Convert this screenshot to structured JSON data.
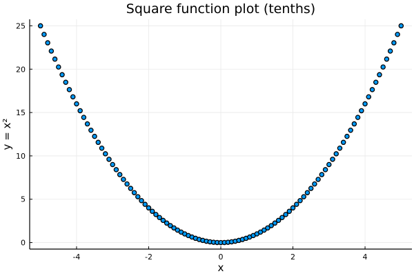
{
  "chart_data": {
    "type": "scatter",
    "title": "Square function plot (tenths)",
    "xlabel": "x",
    "ylabel": "y = x²",
    "xlim": [
      -5.3,
      5.3
    ],
    "ylim": [
      -0.75,
      25.75
    ],
    "xticks": [
      -4,
      -2,
      0,
      2,
      4
    ],
    "yticks": [
      0,
      5,
      10,
      15,
      20,
      25
    ],
    "grid": true,
    "legend": "none",
    "series": [
      {
        "marker_color": "#009AFA",
        "marker_edge_color": "#000000",
        "x_start": -5,
        "x_end": 5,
        "x_step": 0.1,
        "y_function": "x^2",
        "points": [
          [
            -5,
            25
          ],
          [
            -4.9,
            24.01
          ],
          [
            -4.8,
            23.04
          ],
          [
            -4.7,
            22.09
          ],
          [
            -4.6,
            21.16
          ],
          [
            -4.5,
            20.25
          ],
          [
            -4.4,
            19.36
          ],
          [
            -4.3,
            18.49
          ],
          [
            -4.2,
            17.64
          ],
          [
            -4.1,
            16.81
          ],
          [
            -4,
            16
          ],
          [
            -3.9,
            15.21
          ],
          [
            -3.8,
            14.44
          ],
          [
            -3.7,
            13.69
          ],
          [
            -3.6,
            12.96
          ],
          [
            -3.5,
            12.25
          ],
          [
            -3.4,
            11.56
          ],
          [
            -3.3,
            10.89
          ],
          [
            -3.2,
            10.24
          ],
          [
            -3.1,
            9.61
          ],
          [
            -3,
            9
          ],
          [
            -2.9,
            8.41
          ],
          [
            -2.8,
            7.84
          ],
          [
            -2.7,
            7.29
          ],
          [
            -2.6,
            6.76
          ],
          [
            -2.5,
            6.25
          ],
          [
            -2.4,
            5.76
          ],
          [
            -2.3,
            5.29
          ],
          [
            -2.2,
            4.84
          ],
          [
            -2.1,
            4.41
          ],
          [
            -2,
            4
          ],
          [
            -1.9,
            3.61
          ],
          [
            -1.8,
            3.24
          ],
          [
            -1.7,
            2.89
          ],
          [
            -1.6,
            2.56
          ],
          [
            -1.5,
            2.25
          ],
          [
            -1.4,
            1.96
          ],
          [
            -1.3,
            1.69
          ],
          [
            -1.2,
            1.44
          ],
          [
            -1.1,
            1.21
          ],
          [
            -1,
            1
          ],
          [
            -0.9,
            0.81
          ],
          [
            -0.8,
            0.64
          ],
          [
            -0.7,
            0.49
          ],
          [
            -0.6,
            0.36
          ],
          [
            -0.5,
            0.25
          ],
          [
            -0.4,
            0.16
          ],
          [
            -0.3,
            0.09
          ],
          [
            -0.2,
            0.04
          ],
          [
            -0.1,
            0.01
          ],
          [
            0,
            0
          ],
          [
            0.1,
            0.01
          ],
          [
            0.2,
            0.04
          ],
          [
            0.3,
            0.09
          ],
          [
            0.4,
            0.16
          ],
          [
            0.5,
            0.25
          ],
          [
            0.6,
            0.36
          ],
          [
            0.7,
            0.49
          ],
          [
            0.8,
            0.64
          ],
          [
            0.9,
            0.81
          ],
          [
            1,
            1
          ],
          [
            1.1,
            1.21
          ],
          [
            1.2,
            1.44
          ],
          [
            1.3,
            1.69
          ],
          [
            1.4,
            1.96
          ],
          [
            1.5,
            2.25
          ],
          [
            1.6,
            2.56
          ],
          [
            1.7,
            2.89
          ],
          [
            1.8,
            3.24
          ],
          [
            1.9,
            3.61
          ],
          [
            2,
            4
          ],
          [
            2.1,
            4.41
          ],
          [
            2.2,
            4.84
          ],
          [
            2.3,
            5.29
          ],
          [
            2.4,
            5.76
          ],
          [
            2.5,
            6.25
          ],
          [
            2.6,
            6.76
          ],
          [
            2.7,
            7.29
          ],
          [
            2.8,
            7.84
          ],
          [
            2.9,
            8.41
          ],
          [
            3,
            9
          ],
          [
            3.1,
            9.61
          ],
          [
            3.2,
            10.24
          ],
          [
            3.3,
            10.89
          ],
          [
            3.4,
            11.56
          ],
          [
            3.5,
            12.25
          ],
          [
            3.6,
            12.96
          ],
          [
            3.7,
            13.69
          ],
          [
            3.8,
            14.44
          ],
          [
            3.9,
            15.21
          ],
          [
            4,
            16
          ],
          [
            4.1,
            16.81
          ],
          [
            4.2,
            17.64
          ],
          [
            4.3,
            18.49
          ],
          [
            4.4,
            19.36
          ],
          [
            4.5,
            20.25
          ],
          [
            4.6,
            21.16
          ],
          [
            4.7,
            22.09
          ],
          [
            4.8,
            23.04
          ],
          [
            4.9,
            24.01
          ],
          [
            5,
            25
          ]
        ]
      }
    ]
  }
}
